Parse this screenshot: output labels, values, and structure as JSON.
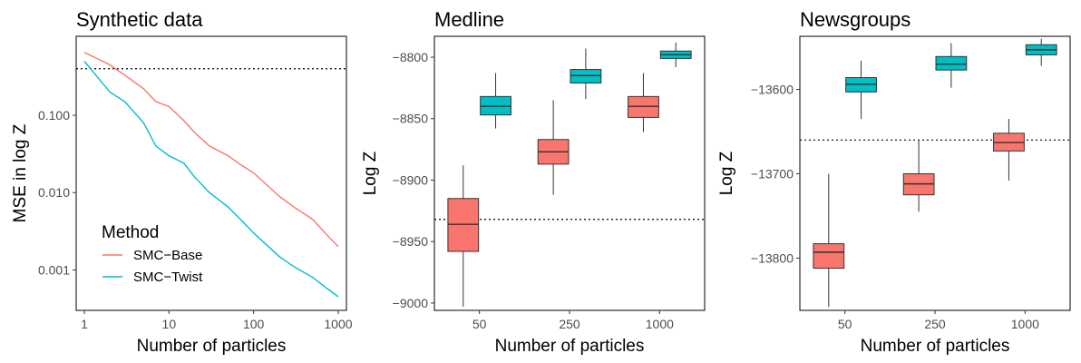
{
  "colors": {
    "base": "#F8766D",
    "twist": "#00BFC4",
    "reference": "#000000"
  },
  "chart_data": [
    {
      "type": "line",
      "title": "Synthetic data",
      "xlabel": "Number of particles",
      "ylabel": "MSE in log Z",
      "xscale": "log10",
      "yscale": "log10",
      "xlim": [
        0.8,
        1250
      ],
      "ylim": [
        0.0003,
        1.05
      ],
      "xticks": [
        1,
        10,
        100,
        1000
      ],
      "xtick_labels": [
        "1",
        "10",
        "100",
        "1000"
      ],
      "yticks": [
        0.001,
        0.01,
        0.1
      ],
      "ytick_labels": [
        "0.001",
        "0.010",
        "0.100"
      ],
      "reference_line": 0.4,
      "legend": {
        "title": "Method",
        "position": "bottom-left",
        "entries": [
          "SMC−Base",
          "SMC−Twist"
        ]
      },
      "series": [
        {
          "name": "SMC−Base",
          "color_key": "base",
          "x": [
            1,
            2,
            3,
            5,
            7,
            10,
            15,
            20,
            30,
            50,
            70,
            100,
            150,
            200,
            300,
            500,
            700,
            1000
          ],
          "y": [
            0.65,
            0.45,
            0.33,
            0.22,
            0.15,
            0.13,
            0.085,
            0.06,
            0.04,
            0.03,
            0.023,
            0.018,
            0.012,
            0.009,
            0.0065,
            0.0045,
            0.003,
            0.002
          ]
        },
        {
          "name": "SMC−Twist",
          "color_key": "twist",
          "x": [
            1,
            2,
            3,
            5,
            7,
            10,
            15,
            20,
            30,
            50,
            70,
            100,
            150,
            200,
            300,
            500,
            700,
            1000
          ],
          "y": [
            0.5,
            0.2,
            0.15,
            0.08,
            0.04,
            0.03,
            0.024,
            0.016,
            0.01,
            0.0065,
            0.0045,
            0.003,
            0.002,
            0.0015,
            0.0011,
            0.0008,
            0.0006,
            0.00045
          ]
        }
      ]
    },
    {
      "type": "box",
      "title": "Medline",
      "xlabel": "Number of particles",
      "ylabel": "Log Z",
      "categories": [
        "50",
        "250",
        "1000"
      ],
      "ylim": [
        -9006,
        -8783
      ],
      "yticks": [
        -9000,
        -8950,
        -8900,
        -8850,
        -8800
      ],
      "ytick_labels": [
        "−9000",
        "−8950",
        "−8900",
        "−8850",
        "−8800"
      ],
      "reference_line": -8932,
      "series": [
        {
          "name": "SMC−Base",
          "color_key": "base",
          "boxes": [
            {
              "min": -9003,
              "q1": -8958,
              "median": -8936,
              "q3": -8915,
              "max": -8888
            },
            {
              "min": -8912,
              "q1": -8887,
              "median": -8877,
              "q3": -8867,
              "max": -8835
            },
            {
              "min": -8861,
              "q1": -8849,
              "median": -8840,
              "q3": -8832,
              "max": -8813
            }
          ]
        },
        {
          "name": "SMC−Twist",
          "color_key": "twist",
          "boxes": [
            {
              "min": -8858,
              "q1": -8847,
              "median": -8840,
              "q3": -8832,
              "max": -8813
            },
            {
              "min": -8834,
              "q1": -8821,
              "median": -8815,
              "q3": -8810,
              "max": -8793
            },
            {
              "min": -8808,
              "q1": -8801,
              "median": -8798,
              "q3": -8795,
              "max": -8788
            }
          ]
        }
      ]
    },
    {
      "type": "box",
      "title": "Newsgroups",
      "xlabel": "Number of particles",
      "ylabel": "Log Z",
      "categories": [
        "50",
        "250",
        "1000"
      ],
      "ylim": [
        -13862,
        -13537
      ],
      "yticks": [
        -13800,
        -13700,
        -13600
      ],
      "ytick_labels": [
        "−13800",
        "−13700",
        "−13600"
      ],
      "reference_line": -13660,
      "series": [
        {
          "name": "SMC−Base",
          "color_key": "base",
          "boxes": [
            {
              "min": -13858,
              "q1": -13812,
              "median": -13793,
              "q3": -13783,
              "max": -13700
            },
            {
              "min": -13745,
              "q1": -13725,
              "median": -13712,
              "q3": -13700,
              "max": -13660
            },
            {
              "min": -13708,
              "q1": -13673,
              "median": -13663,
              "q3": -13652,
              "max": -13635
            }
          ]
        },
        {
          "name": "SMC−Twist",
          "color_key": "twist",
          "boxes": [
            {
              "min": -13635,
              "q1": -13603,
              "median": -13594,
              "q3": -13586,
              "max": -13566
            },
            {
              "min": -13598,
              "q1": -13577,
              "median": -13570,
              "q3": -13561,
              "max": -13545
            },
            {
              "min": -13572,
              "q1": -13559,
              "median": -13553,
              "q3": -13547,
              "max": -13540
            }
          ]
        }
      ]
    }
  ]
}
